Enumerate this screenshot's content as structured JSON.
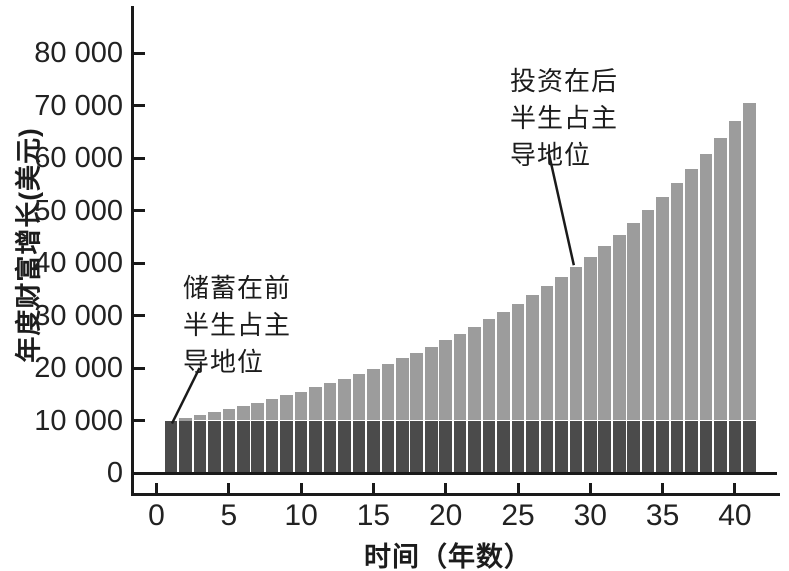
{
  "chart_data": {
    "type": "bar",
    "stacked": true,
    "xlabel": "时间（年数）",
    "ylabel": "年度财富增长(美元)",
    "categories": [
      1,
      2,
      3,
      4,
      5,
      6,
      7,
      8,
      9,
      10,
      11,
      12,
      13,
      14,
      15,
      16,
      17,
      18,
      19,
      20,
      21,
      22,
      23,
      24,
      25,
      26,
      27,
      28,
      29,
      30,
      31,
      32,
      33,
      34,
      35,
      36,
      37,
      38,
      39,
      40,
      41
    ],
    "series": [
      {
        "name": "储蓄",
        "color": "#4b4b4b",
        "values": [
          10000,
          10000,
          10000,
          10000,
          10000,
          10000,
          10000,
          10000,
          10000,
          10000,
          10000,
          10000,
          10000,
          10000,
          10000,
          10000,
          10000,
          10000,
          10000,
          10000,
          10000,
          10000,
          10000,
          10000,
          10000,
          10000,
          10000,
          10000,
          10000,
          10000,
          10000,
          10000,
          10000,
          10000,
          10000,
          10000,
          10000,
          10000,
          10000,
          10000,
          10000
        ]
      },
      {
        "name": "投资",
        "color": "#9c9c9c",
        "values": [
          0,
          500,
          1025,
          1576,
          2155,
          2763,
          3401,
          4071,
          4775,
          5513,
          6289,
          7103,
          7959,
          8856,
          9799,
          10789,
          11829,
          12920,
          14066,
          15270,
          16533,
          17860,
          19253,
          20715,
          22251,
          23864,
          25557,
          27335,
          29201,
          31161,
          33219,
          35380,
          37649,
          40032,
          42533,
          45160,
          47918,
          50814,
          53855,
          57048,
          60400
        ]
      }
    ],
    "x_ticks": {
      "values": [
        0,
        5,
        10,
        15,
        20,
        25,
        30,
        35,
        40
      ],
      "labels": [
        "0",
        "5",
        "10",
        "15",
        "20",
        "25",
        "30",
        "35",
        "40"
      ]
    },
    "y_ticks": {
      "values": [
        0,
        10000,
        20000,
        30000,
        40000,
        50000,
        60000,
        70000,
        80000
      ],
      "labels": [
        "0",
        "10 000",
        "20 000",
        "30 000",
        "40 000",
        "50 000",
        "60 000",
        "70 000",
        "80 000"
      ]
    },
    "ylim": [
      0,
      87000
    ],
    "grid": false,
    "legend": false
  },
  "annotations": {
    "savings": {
      "lines": [
        "储蓄在前",
        "半生占主",
        "导地位"
      ],
      "target_year": 1
    },
    "investment": {
      "lines": [
        "投资在后",
        "半生占主",
        "导地位"
      ],
      "target_year": 29
    }
  },
  "colors": {
    "savings_bar": "#4b4b4b",
    "investment_bar": "#9c9c9c",
    "axis": "#1a1a1a",
    "text": "#222222",
    "background": "#ffffff"
  }
}
